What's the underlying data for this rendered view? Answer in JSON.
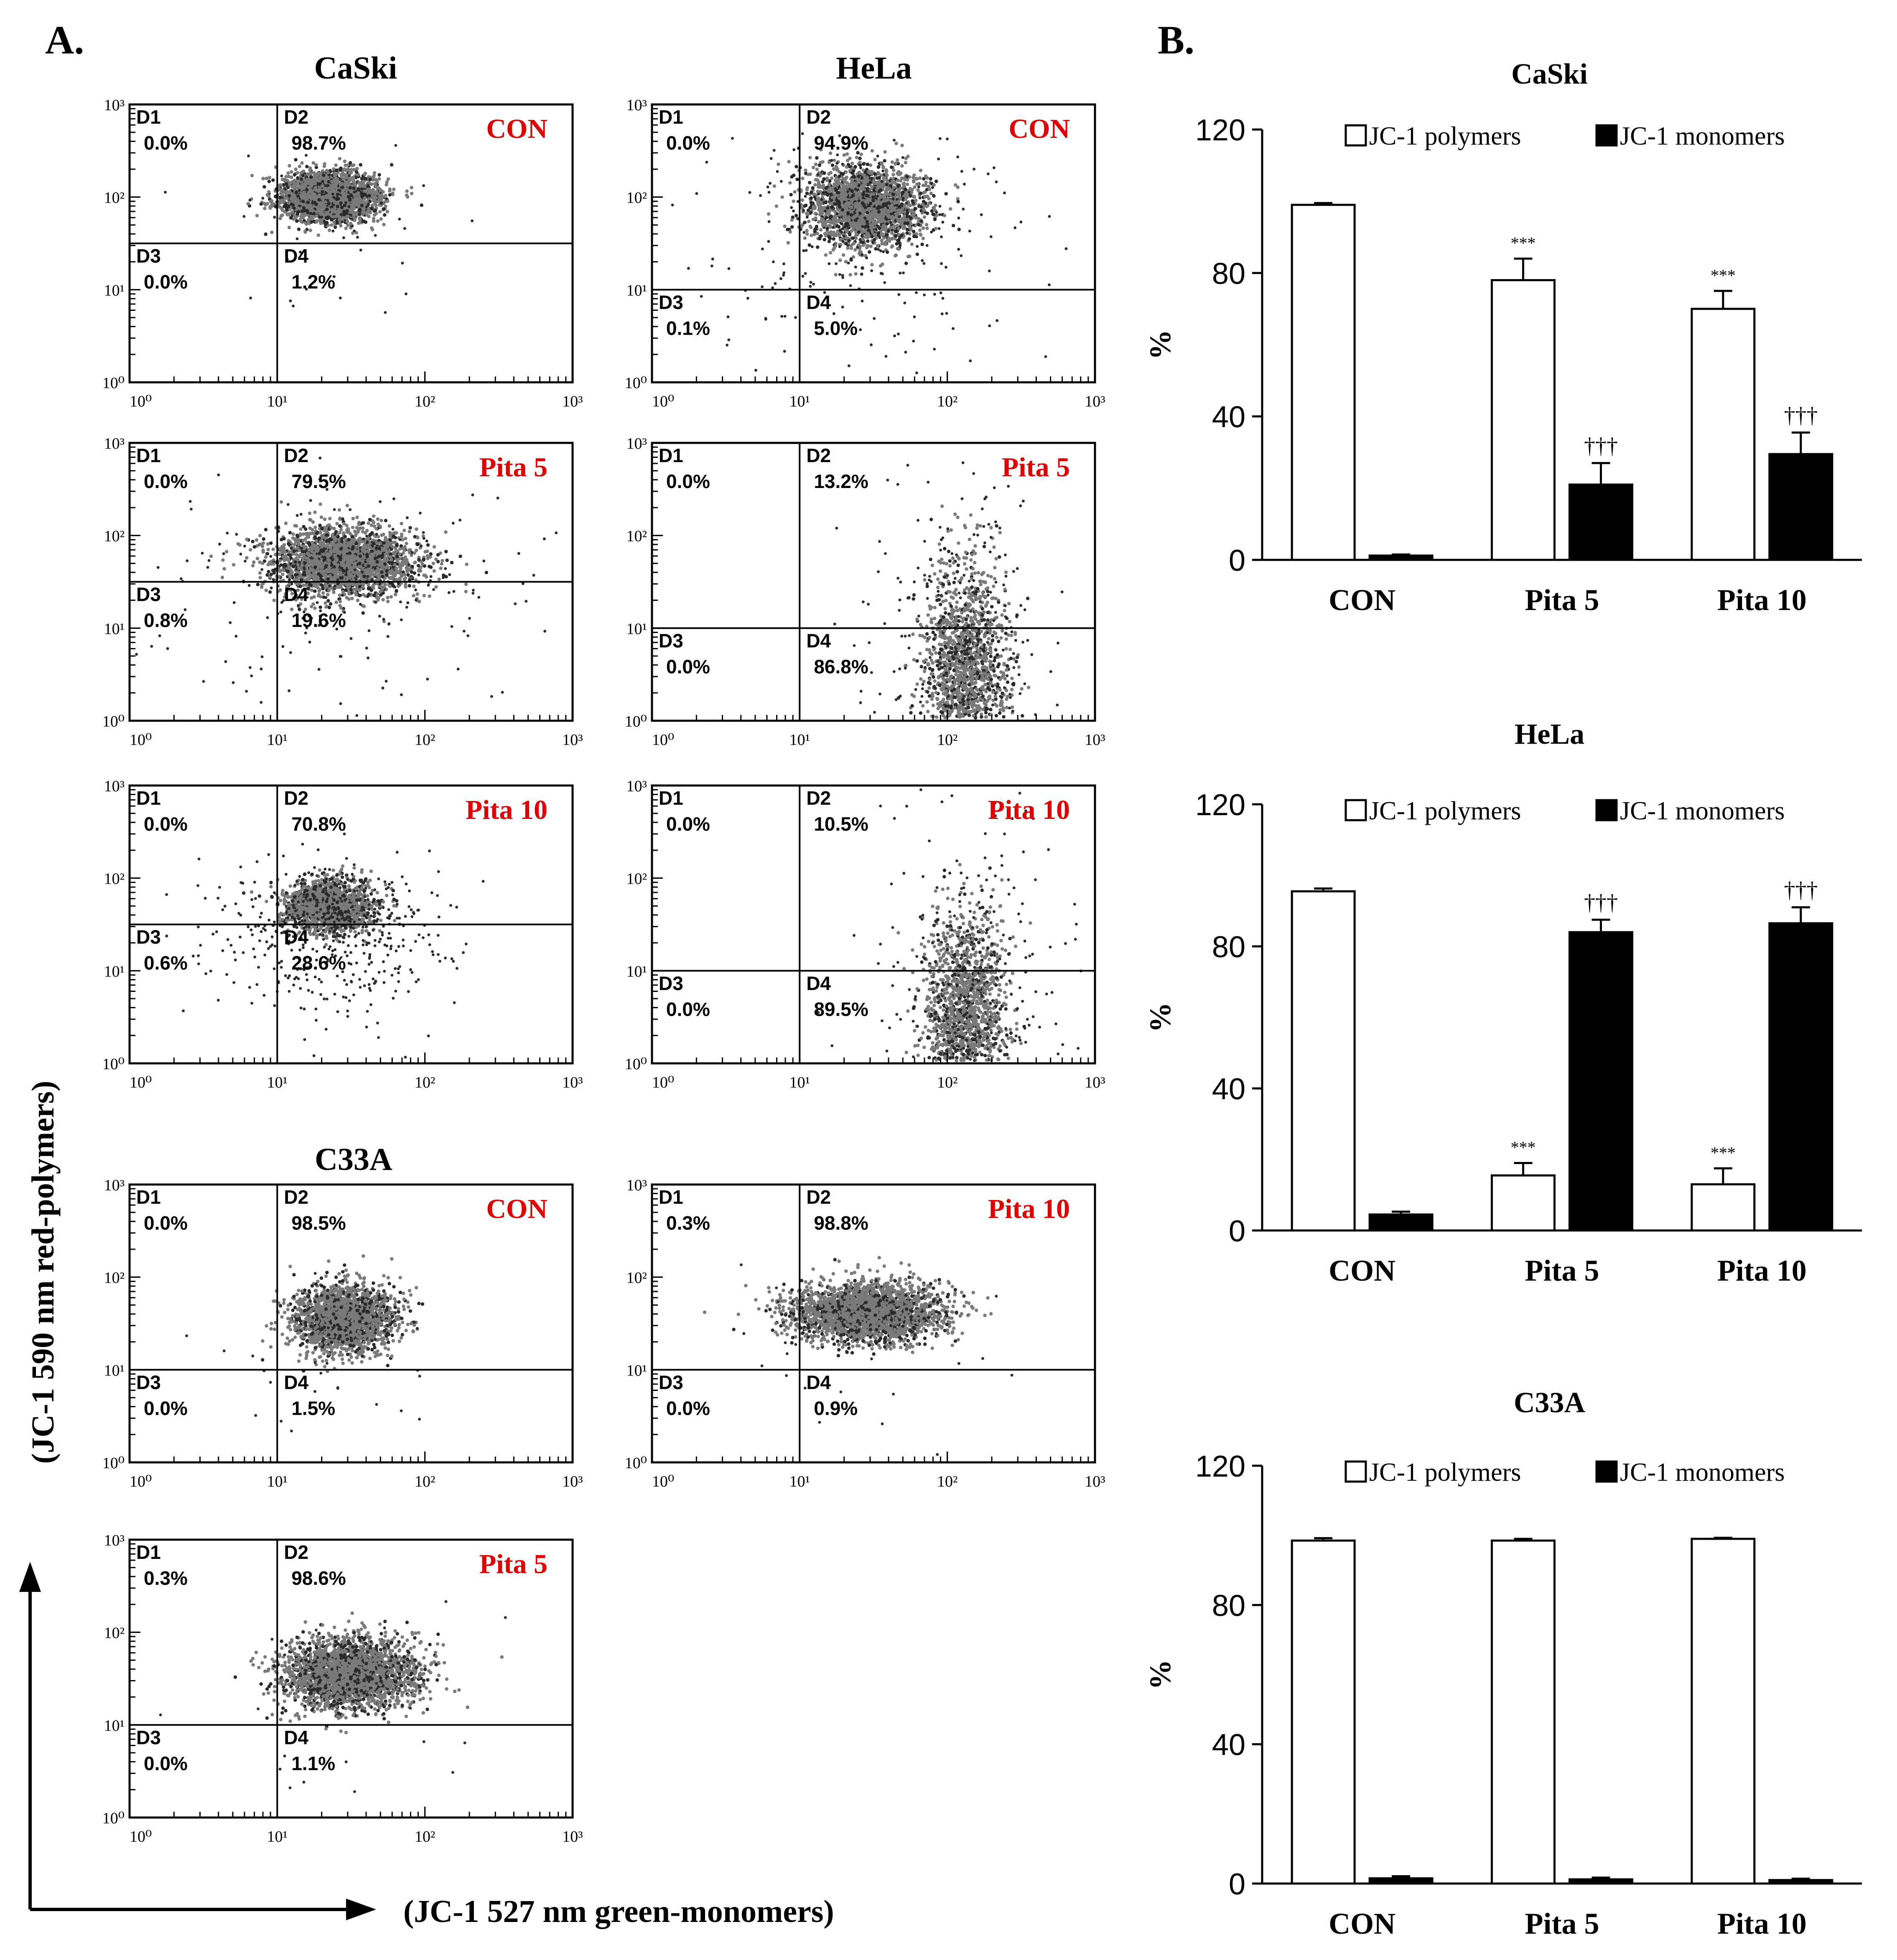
{
  "panel_labels": {
    "a": "A.",
    "b": "B."
  },
  "axis_titles": {
    "y": "(JC-1 590 nm red-polymers)",
    "x": "(JC-1 527 nm green-monomers)"
  },
  "colors": {
    "text": "#000000",
    "treatment_label": "#e00000",
    "dots_dense": "#7a7a7a",
    "dots_sparse": "#2a2a2a",
    "bar_open": "#ffffff",
    "bar_filled": "#000000"
  },
  "chart_data": [
    {
      "type": "scatter",
      "chart_kind": "flow-cytometry-quadrant",
      "id": "caski-con",
      "cell_line": "CaSki",
      "treatment": "CON",
      "x_ticks": [
        "10⁰",
        "10¹",
        "10²",
        "10³"
      ],
      "y_ticks": [
        "10⁰",
        "10¹",
        "10²",
        "10³"
      ],
      "gate": {
        "x": 1.0,
        "y": 1.5
      },
      "quadrants": [
        {
          "name": "D1",
          "value": "0.0%"
        },
        {
          "name": "D2",
          "value": "98.7%"
        },
        {
          "name": "D3",
          "value": "0.0%"
        },
        {
          "name": "D4",
          "value": "1.2%"
        }
      ],
      "population": {
        "cx": 1.35,
        "cy": 2.0,
        "sx": 0.17,
        "sy": 0.13,
        "n": 2600,
        "tail": 45
      }
    },
    {
      "type": "scatter",
      "chart_kind": "flow-cytometry-quadrant",
      "id": "hela-con",
      "cell_line": "HeLa",
      "treatment": "CON",
      "x_ticks": [
        "10⁰",
        "10¹",
        "10²",
        "10³"
      ],
      "y_ticks": [
        "10⁰",
        "10¹",
        "10²",
        "10³"
      ],
      "gate": {
        "x": 1.0,
        "y": 1.0
      },
      "quadrants": [
        {
          "name": "D1",
          "value": "0.0%"
        },
        {
          "name": "D2",
          "value": "94.9%"
        },
        {
          "name": "D3",
          "value": "0.1%"
        },
        {
          "name": "D4",
          "value": "5.0%"
        }
      ],
      "population": {
        "cx": 1.45,
        "cy": 1.9,
        "sx": 0.2,
        "sy": 0.22,
        "n": 2200,
        "tail": 220
      }
    },
    {
      "type": "scatter",
      "chart_kind": "flow-cytometry-quadrant",
      "id": "caski-pita5",
      "cell_line": "CaSki",
      "treatment": "Pita 5",
      "x_ticks": [
        "10⁰",
        "10¹",
        "10²",
        "10³"
      ],
      "y_ticks": [
        "10⁰",
        "10¹",
        "10²",
        "10³"
      ],
      "gate": {
        "x": 1.0,
        "y": 1.5
      },
      "quadrants": [
        {
          "name": "D1",
          "value": "0.0%"
        },
        {
          "name": "D2",
          "value": "79.5%"
        },
        {
          "name": "D3",
          "value": "0.8%"
        },
        {
          "name": "D4",
          "value": "19.6%"
        }
      ],
      "population": {
        "cx": 1.45,
        "cy": 1.72,
        "sx": 0.25,
        "sy": 0.18,
        "n": 2600,
        "tail": 180
      }
    },
    {
      "type": "scatter",
      "chart_kind": "flow-cytometry-quadrant",
      "id": "hela-pita5",
      "cell_line": "HeLa",
      "treatment": "Pita 5",
      "x_ticks": [
        "10⁰",
        "10¹",
        "10²",
        "10³"
      ],
      "y_ticks": [
        "10⁰",
        "10¹",
        "10²",
        "10³"
      ],
      "gate": {
        "x": 1.0,
        "y": 1.0
      },
      "quadrants": [
        {
          "name": "D1",
          "value": "0.0%"
        },
        {
          "name": "D2",
          "value": "13.2%"
        },
        {
          "name": "D3",
          "value": "0.0%"
        },
        {
          "name": "D4",
          "value": "86.8%"
        }
      ],
      "population": {
        "cx": 2.12,
        "cy": 0.55,
        "sx": 0.14,
        "sy": 0.55,
        "n": 1600,
        "tail": 300
      }
    },
    {
      "type": "scatter",
      "chart_kind": "flow-cytometry-quadrant",
      "id": "caski-pita10",
      "cell_line": "CaSki",
      "treatment": "Pita 10",
      "x_ticks": [
        "10⁰",
        "10¹",
        "10²",
        "10³"
      ],
      "y_ticks": [
        "10⁰",
        "10¹",
        "10²",
        "10³"
      ],
      "gate": {
        "x": 1.0,
        "y": 1.5
      },
      "quadrants": [
        {
          "name": "D1",
          "value": "0.0%"
        },
        {
          "name": "D2",
          "value": "70.8%"
        },
        {
          "name": "D3",
          "value": "0.6%"
        },
        {
          "name": "D4",
          "value": "28.6%"
        }
      ],
      "population": {
        "cx": 1.35,
        "cy": 1.7,
        "sx": 0.15,
        "sy": 0.14,
        "n": 1700,
        "tail": 420
      }
    },
    {
      "type": "scatter",
      "chart_kind": "flow-cytometry-quadrant",
      "id": "hela-pita10",
      "cell_line": "HeLa",
      "treatment": "Pita 10",
      "x_ticks": [
        "10⁰",
        "10¹",
        "10²",
        "10³"
      ],
      "y_ticks": [
        "10⁰",
        "10¹",
        "10²",
        "10³"
      ],
      "gate": {
        "x": 1.0,
        "y": 1.0
      },
      "quadrants": [
        {
          "name": "D1",
          "value": "0.0%"
        },
        {
          "name": "D2",
          "value": "10.5%"
        },
        {
          "name": "D3",
          "value": "0.0%"
        },
        {
          "name": "D4",
          "value": "89.5%"
        }
      ],
      "population": {
        "cx": 2.12,
        "cy": 0.55,
        "sx": 0.14,
        "sy": 0.55,
        "n": 1600,
        "tail": 300
      }
    },
    {
      "type": "scatter",
      "chart_kind": "flow-cytometry-quadrant",
      "id": "c33a-con",
      "cell_line": "C33A",
      "treatment": "CON",
      "x_ticks": [
        "10⁰",
        "10¹",
        "10²",
        "10³"
      ],
      "y_ticks": [
        "10⁰",
        "10¹",
        "10²",
        "10³"
      ],
      "gate": {
        "x": 1.0,
        "y": 1.0
      },
      "quadrants": [
        {
          "name": "D1",
          "value": "0.0%"
        },
        {
          "name": "D2",
          "value": "98.5%"
        },
        {
          "name": "D3",
          "value": "0.0%"
        },
        {
          "name": "D4",
          "value": "1.5%"
        }
      ],
      "population": {
        "cx": 1.45,
        "cy": 1.55,
        "sx": 0.17,
        "sy": 0.18,
        "n": 2200,
        "tail": 30
      }
    },
    {
      "type": "scatter",
      "chart_kind": "flow-cytometry-quadrant",
      "id": "c33a-pita10",
      "cell_line": "C33A",
      "treatment": "Pita 10",
      "x_ticks": [
        "10⁰",
        "10¹",
        "10²",
        "10³"
      ],
      "y_ticks": [
        "10⁰",
        "10¹",
        "10²",
        "10³"
      ],
      "gate": {
        "x": 1.0,
        "y": 1.0
      },
      "quadrants": [
        {
          "name": "D1",
          "value": "0.3%"
        },
        {
          "name": "D2",
          "value": "98.8%"
        },
        {
          "name": "D3",
          "value": "0.0%"
        },
        {
          "name": "D4",
          "value": "0.9%"
        }
      ],
      "population": {
        "cx": 1.45,
        "cy": 1.62,
        "sx": 0.25,
        "sy": 0.16,
        "n": 2800,
        "tail": 30
      }
    },
    {
      "type": "scatter",
      "chart_kind": "flow-cytometry-quadrant",
      "id": "c33a-pita5",
      "cell_line": "C33A",
      "treatment": "Pita 5",
      "x_ticks": [
        "10⁰",
        "10¹",
        "10²",
        "10³"
      ],
      "y_ticks": [
        "10⁰",
        "10¹",
        "10²",
        "10³"
      ],
      "gate": {
        "x": 1.0,
        "y": 1.0
      },
      "quadrants": [
        {
          "name": "D1",
          "value": "0.3%"
        },
        {
          "name": "D2",
          "value": "98.6%"
        },
        {
          "name": "D3",
          "value": "0.0%"
        },
        {
          "name": "D4",
          "value": "1.1%"
        }
      ],
      "population": {
        "cx": 1.5,
        "cy": 1.55,
        "sx": 0.22,
        "sy": 0.19,
        "n": 2800,
        "tail": 30
      }
    },
    {
      "type": "bar",
      "id": "bar-caski",
      "title": "CaSki",
      "ylabel": "%",
      "ylim": [
        0,
        120
      ],
      "yticks": [
        0,
        40,
        80,
        120
      ],
      "categories": [
        "CON",
        "Pita 5",
        "Pita 10"
      ],
      "series": [
        {
          "name": "JC-1 polymers",
          "fill": "open",
          "values": [
            99,
            78,
            70
          ],
          "errors": [
            0.5,
            6,
            5
          ],
          "marks": [
            "",
            "***",
            "***"
          ]
        },
        {
          "name": "JC-1 monomers",
          "fill": "filled",
          "values": [
            1.2,
            21,
            29.5
          ],
          "errors": [
            0.3,
            6,
            6
          ],
          "marks": [
            "",
            "†††",
            "†††"
          ]
        }
      ]
    },
    {
      "type": "bar",
      "id": "bar-hela",
      "title": "HeLa",
      "ylabel": "%",
      "ylim": [
        0,
        120
      ],
      "yticks": [
        0,
        40,
        80,
        120
      ],
      "categories": [
        "CON",
        "Pita 5",
        "Pita 10"
      ],
      "series": [
        {
          "name": "JC-1 polymers",
          "fill": "open",
          "values": [
            95.5,
            15.5,
            13
          ],
          "errors": [
            0.8,
            3.5,
            4.5
          ],
          "marks": [
            "",
            "***",
            "***"
          ]
        },
        {
          "name": "JC-1 monomers",
          "fill": "filled",
          "values": [
            4.5,
            84,
            86.5
          ],
          "errors": [
            0.8,
            3.5,
            4.5
          ],
          "marks": [
            "",
            "†††",
            "†††"
          ]
        }
      ]
    },
    {
      "type": "bar",
      "id": "bar-c33a",
      "title": "C33A",
      "ylabel": "%",
      "ylim": [
        0,
        120
      ],
      "yticks": [
        0,
        40,
        80,
        120
      ],
      "categories": [
        "CON",
        "Pita 5",
        "Pita 10"
      ],
      "series": [
        {
          "name": "JC-1 polymers",
          "fill": "open",
          "values": [
            98.5,
            98.5,
            99
          ],
          "errors": [
            0.7,
            0.5,
            0.3
          ],
          "marks": [
            "",
            "",
            ""
          ]
        },
        {
          "name": "JC-1 monomers",
          "fill": "filled",
          "values": [
            1.5,
            1.2,
            1.0
          ],
          "errors": [
            0.6,
            0.5,
            0.4
          ],
          "marks": [
            "",
            "",
            ""
          ]
        }
      ]
    }
  ]
}
